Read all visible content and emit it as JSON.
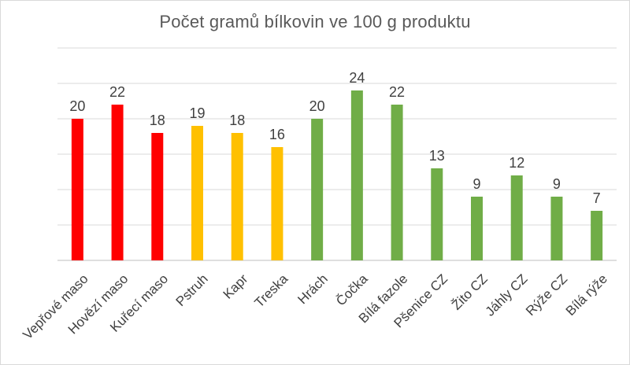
{
  "chart_data": {
    "type": "bar",
    "title": "Počet gramů bílkovin ve 100 g produktu",
    "xlabel": "",
    "ylabel": "",
    "ylim": [
      0,
      30
    ],
    "y_gridlines": [
      0,
      5,
      10,
      15,
      20,
      25,
      30
    ],
    "grid": true,
    "legend": "none",
    "categories": [
      "Vepřové maso",
      "Hovězí maso",
      "Kuřecí maso",
      "Pstruh",
      "Kapr",
      "Treska",
      "Hrách",
      "Čočka",
      "Bílá fazole",
      "Pšenice CZ",
      "Žito CZ",
      "Jáhly CZ",
      "Rýže CZ",
      "Bílá rýže"
    ],
    "values": [
      20,
      22,
      18,
      19,
      18,
      16,
      20,
      24,
      22,
      13,
      9,
      12,
      9,
      7
    ],
    "bar_colors": [
      "#ff0000",
      "#ff0000",
      "#ff0000",
      "#ffc000",
      "#ffc000",
      "#ffc000",
      "#70ad47",
      "#70ad47",
      "#70ad47",
      "#70ad47",
      "#70ad47",
      "#70ad47",
      "#70ad47",
      "#70ad47"
    ],
    "gridline_color": "#d9d9d9",
    "axis_color": "#bfbfbf"
  }
}
